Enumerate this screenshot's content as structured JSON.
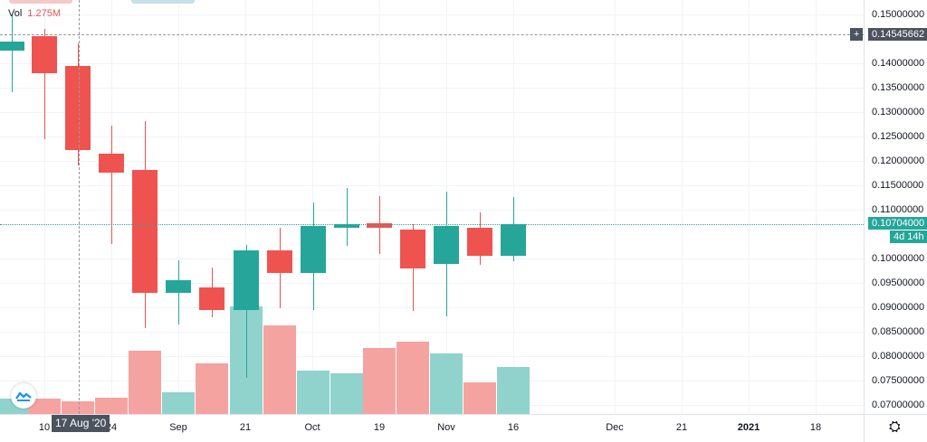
{
  "chart_data": {
    "type": "candlestick",
    "title": "",
    "interval": "1W",
    "xlabel": "",
    "ylabel": "",
    "ylim": [
      0.0675,
      0.153
    ],
    "grid": true,
    "legend": {
      "label": "Vol",
      "value": "1.275M"
    },
    "y_ticks": [
      "0.15000000",
      "0.14000000",
      "0.13500000",
      "0.13000000",
      "0.12500000",
      "0.12000000",
      "0.11500000",
      "0.11000000",
      "0.10000000",
      "0.09500000",
      "0.09000000",
      "0.08500000",
      "0.08000000",
      "0.07500000",
      "0.07000000"
    ],
    "x_ticks": [
      {
        "label": "10",
        "x": 49
      },
      {
        "label": "24",
        "x": 123
      },
      {
        "label": "Sep",
        "x": 197
      },
      {
        "label": "21",
        "x": 271
      },
      {
        "label": "Oct",
        "x": 345
      },
      {
        "label": "19",
        "x": 419
      },
      {
        "label": "Nov",
        "x": 493
      },
      {
        "label": "16",
        "x": 567
      },
      {
        "label": "Dec",
        "x": 679
      },
      {
        "label": "21",
        "x": 753
      },
      {
        "label": "2021",
        "x": 827,
        "bold": true
      },
      {
        "label": "18",
        "x": 901
      }
    ],
    "candles": [
      {
        "x": 13,
        "open": 0.1425,
        "close": 0.1445,
        "high": 0.15,
        "low": 0.134,
        "vol": 0.12
      },
      {
        "x": 49,
        "open": 0.1455,
        "close": 0.138,
        "high": 0.147,
        "low": 0.1245,
        "vol": 0.12
      },
      {
        "x": 86,
        "open": 0.1395,
        "close": 0.1223,
        "high": 0.144,
        "low": 0.119,
        "vol": 0.1
      },
      {
        "x": 123,
        "open": 0.1215,
        "close": 0.1175,
        "high": 0.1273,
        "low": 0.103,
        "vol": 0.13
      },
      {
        "x": 160,
        "open": 0.1182,
        "close": 0.093,
        "high": 0.1282,
        "low": 0.0858,
        "vol": 0.5
      },
      {
        "x": 197,
        "open": 0.093,
        "close": 0.0955,
        "high": 0.0997,
        "low": 0.0865,
        "vol": 0.17
      },
      {
        "x": 234,
        "open": 0.094,
        "close": 0.0895,
        "high": 0.0982,
        "low": 0.088,
        "vol": 0.4
      },
      {
        "x": 272,
        "open": 0.0895,
        "close": 0.1017,
        "high": 0.1027,
        "low": 0.0755,
        "vol": 0.85
      },
      {
        "x": 309,
        "open": 0.1017,
        "close": 0.097,
        "high": 0.1063,
        "low": 0.0898,
        "vol": 0.7
      },
      {
        "x": 346,
        "open": 0.097,
        "close": 0.1067,
        "high": 0.1115,
        "low": 0.0895,
        "vol": 0.34
      },
      {
        "x": 383,
        "open": 0.1063,
        "close": 0.107,
        "high": 0.1145,
        "low": 0.1025,
        "vol": 0.32
      },
      {
        "x": 419,
        "open": 0.1072,
        "close": 0.1063,
        "high": 0.1128,
        "low": 0.101,
        "vol": 0.52
      },
      {
        "x": 456,
        "open": 0.106,
        "close": 0.098,
        "high": 0.107,
        "low": 0.0892,
        "vol": 0.57
      },
      {
        "x": 493,
        "open": 0.0988,
        "close": 0.1067,
        "high": 0.1137,
        "low": 0.0882,
        "vol": 0.48
      },
      {
        "x": 530,
        "open": 0.1063,
        "close": 0.1005,
        "high": 0.1094,
        "low": 0.0987,
        "vol": 0.25
      },
      {
        "x": 567,
        "open": 0.1005,
        "close": 0.107,
        "high": 0.1126,
        "low": 0.0995,
        "vol": 0.37
      }
    ]
  },
  "price_axis": {
    "crosshair_price": "0.14545662",
    "last_price": "0.10704000",
    "countdown": "4d 14h",
    "hidden_partial": "0.10"
  },
  "time_axis": {
    "crosshair_date": "17 Aug '20"
  },
  "colors": {
    "up": "#26a69a",
    "down": "#ef5350",
    "up_vol": "#8fd3cc",
    "down_vol": "#f5a3a1",
    "crosshair_tag": "#4c525e"
  },
  "icons": {
    "logo": "tradingview-cloud-icon",
    "settings": "gear-icon",
    "crosshair_add": "plus-icon"
  }
}
